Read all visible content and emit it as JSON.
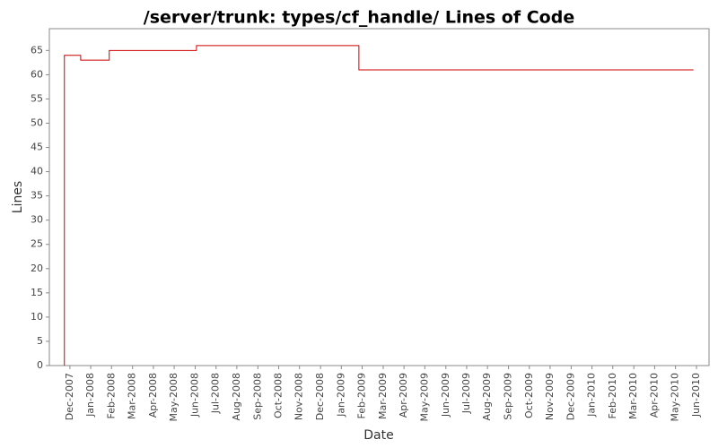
{
  "chart_data": {
    "type": "line",
    "step": true,
    "title": "/server/trunk: types/cf_handle/ Lines of Code",
    "x_label": "Date",
    "y_label": "Lines",
    "x": [
      2007.895,
      2007.895,
      2007.96,
      2008.074,
      2008.422,
      2009.07,
      2010.405
    ],
    "series": [
      {
        "name": "Lines",
        "color": "#cc0000",
        "values": [
          0,
          64,
          63,
          65,
          66,
          61,
          61
        ]
      }
    ],
    "xlim": [
      2007.835,
      2010.467
    ],
    "xticks": [
      {
        "value": 2007.917,
        "label": "Dec-2007"
      },
      {
        "value": 2008.0,
        "label": "Jan-2008"
      },
      {
        "value": 2008.083,
        "label": "Feb-2008"
      },
      {
        "value": 2008.167,
        "label": "Mar-2008"
      },
      {
        "value": 2008.25,
        "label": "Apr-2008"
      },
      {
        "value": 2008.333,
        "label": "May-2008"
      },
      {
        "value": 2008.417,
        "label": "Jun-2008"
      },
      {
        "value": 2008.5,
        "label": "Jul-2008"
      },
      {
        "value": 2008.583,
        "label": "Aug-2008"
      },
      {
        "value": 2008.667,
        "label": "Sep-2008"
      },
      {
        "value": 2008.75,
        "label": "Oct-2008"
      },
      {
        "value": 2008.833,
        "label": "Nov-2008"
      },
      {
        "value": 2008.917,
        "label": "Dec-2008"
      },
      {
        "value": 2009.0,
        "label": "Jan-2009"
      },
      {
        "value": 2009.083,
        "label": "Feb-2009"
      },
      {
        "value": 2009.167,
        "label": "Mar-2009"
      },
      {
        "value": 2009.25,
        "label": "Apr-2009"
      },
      {
        "value": 2009.333,
        "label": "May-2009"
      },
      {
        "value": 2009.417,
        "label": "Jun-2009"
      },
      {
        "value": 2009.5,
        "label": "Jul-2009"
      },
      {
        "value": 2009.583,
        "label": "Aug-2009"
      },
      {
        "value": 2009.667,
        "label": "Sep-2009"
      },
      {
        "value": 2009.75,
        "label": "Oct-2009"
      },
      {
        "value": 2009.833,
        "label": "Nov-2009"
      },
      {
        "value": 2009.917,
        "label": "Dec-2009"
      },
      {
        "value": 2010.0,
        "label": "Jan-2010"
      },
      {
        "value": 2010.083,
        "label": "Feb-2010"
      },
      {
        "value": 2010.167,
        "label": "Mar-2010"
      },
      {
        "value": 2010.25,
        "label": "Apr-2010"
      },
      {
        "value": 2010.333,
        "label": "May-2010"
      },
      {
        "value": 2010.417,
        "label": "Jun-2010"
      }
    ],
    "ylim": [
      0,
      69.5
    ],
    "yticks": [
      0,
      5,
      10,
      15,
      20,
      25,
      30,
      35,
      40,
      45,
      50,
      55,
      60,
      65
    ],
    "grid": false
  }
}
